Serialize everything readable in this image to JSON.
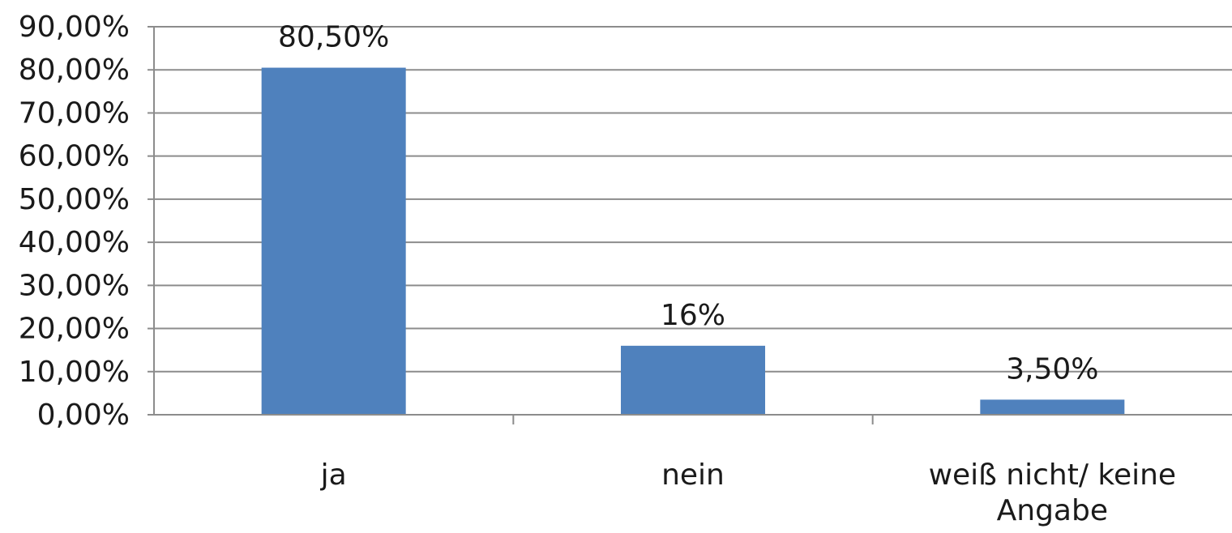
{
  "chart_data": {
    "type": "bar",
    "categories": [
      "ja",
      "nein",
      "weiß nicht/ keine Angabe"
    ],
    "category_label_lines": [
      [
        "ja"
      ],
      [
        "nein"
      ],
      [
        "weiß nicht/ keine",
        "Angabe"
      ]
    ],
    "values": [
      80.5,
      16,
      3.5
    ],
    "data_labels": [
      "80,50%",
      "16%",
      "3,50%"
    ],
    "ylim": [
      0,
      90
    ],
    "y_ticks": [
      0,
      10,
      20,
      30,
      40,
      50,
      60,
      70,
      80,
      90
    ],
    "y_tick_labels": [
      "0,00%",
      "10,00%",
      "20,00%",
      "30,00%",
      "40,00%",
      "50,00%",
      "60,00%",
      "70,00%",
      "80,00%",
      "90,00%"
    ],
    "grid": true,
    "legend": "none",
    "bar_color": "#4f81bd",
    "title": "",
    "xlabel": "",
    "ylabel": ""
  }
}
